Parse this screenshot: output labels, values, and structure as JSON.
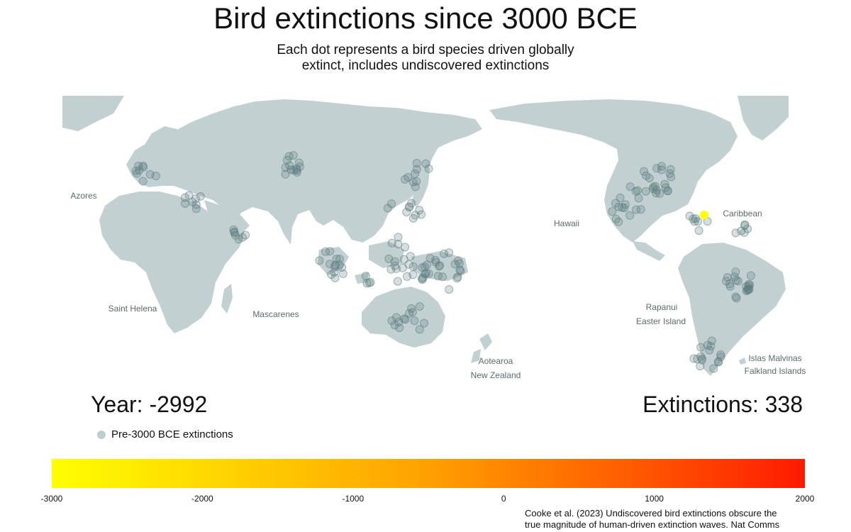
{
  "title": "Bird extinctions since 3000 BCE",
  "subtitle_line1": "Each dot represents a bird species driven globally",
  "subtitle_line2": "extinct, includes undiscovered extinctions",
  "labels": {
    "azores": "Azores",
    "saint_helena": "Saint Helena",
    "mascarenes": "Mascarenes",
    "hawaii": "Hawaii",
    "caribbean": "Caribbean",
    "rapanui": "Rapanui",
    "easter_island": "Easter Island",
    "aotearoa": "Aotearoa",
    "new_zealand": "New Zealand",
    "islas_malvinas": "Islas Malvinas",
    "falkland_islands": "Falkland Islands"
  },
  "year_label": "Year: -2992",
  "extinctions_label": "Extinctions: 338",
  "legend": {
    "pre_label": "Pre-3000 BCE extinctions",
    "pre_color": "#bfcdd0"
  },
  "colorbar": {
    "ticks": [
      "-3000",
      "-2000",
      "-1000",
      "0",
      "1000",
      "2000"
    ],
    "range": [
      -3000,
      2000
    ],
    "colors": [
      "#ffff00",
      "#ffd000",
      "#ffa000",
      "#ff6000",
      "#ff1a00"
    ]
  },
  "source_line1": "Cooke et al. (2023) Undiscovered bird extinctions obscure the",
  "source_line2": "true magnitude of human-driven extinction waves. Nat Comms",
  "colors": {
    "land": "#c3d0d2",
    "dot_fill": "#5d7b80",
    "dot_new": "#ffff00"
  }
}
